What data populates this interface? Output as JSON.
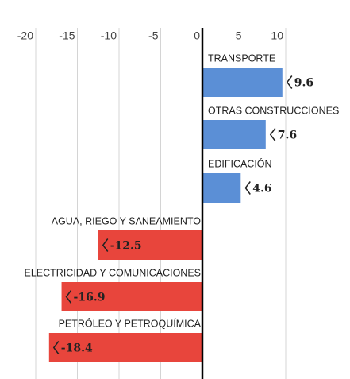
{
  "chart_data": {
    "type": "bar",
    "orientation": "horizontal",
    "categories": [
      "TRANSPORTE",
      "OTRAS CONSTRUCCIONES",
      "EDIFICACIÓN",
      "AGUA, RIEGO Y SANEAMIENTO",
      "ELECTRICIDAD Y COMUNICACIONES",
      "PETRÓLEO Y PETROQUÍMICA"
    ],
    "values": [
      9.6,
      7.6,
      4.6,
      -12.5,
      -16.9,
      -18.4
    ],
    "positive_color": "#5b8fd6",
    "negative_color": "#e8453c",
    "xlim": [
      -20,
      10
    ],
    "xticks": [
      -20,
      -15,
      -10,
      -5,
      0,
      5,
      10
    ],
    "grid": true
  }
}
